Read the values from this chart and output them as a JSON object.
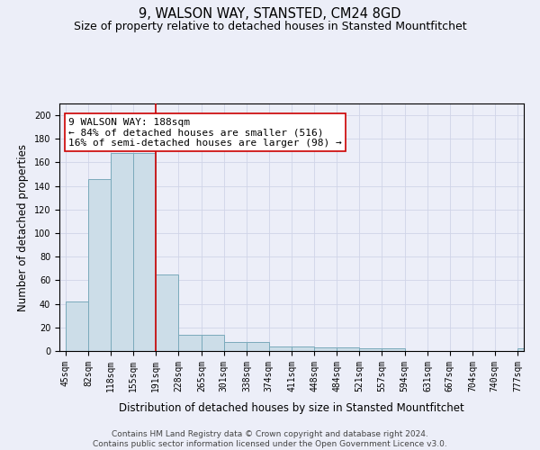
{
  "title": "9, WALSON WAY, STANSTED, CM24 8GD",
  "subtitle": "Size of property relative to detached houses in Stansted Mountfitchet",
  "xlabel": "Distribution of detached houses by size in Stansted Mountfitchet",
  "ylabel": "Number of detached properties",
  "bar_edges": [
    45,
    82,
    118,
    155,
    191,
    228,
    265,
    301,
    338,
    374,
    411,
    448,
    484,
    521,
    557,
    594,
    631,
    667,
    704,
    740,
    777
  ],
  "bar_heights": [
    42,
    146,
    168,
    168,
    65,
    14,
    14,
    8,
    8,
    4,
    4,
    3,
    3,
    2,
    2,
    0,
    0,
    0,
    0,
    0,
    2
  ],
  "tick_labels": [
    "45sqm",
    "82sqm",
    "118sqm",
    "155sqm",
    "191sqm",
    "228sqm",
    "265sqm",
    "301sqm",
    "338sqm",
    "374sqm",
    "411sqm",
    "448sqm",
    "484sqm",
    "521sqm",
    "557sqm",
    "594sqm",
    "631sqm",
    "667sqm",
    "704sqm",
    "740sqm",
    "777sqm"
  ],
  "bar_color": "#ccdde8",
  "bar_edge_color": "#7aaabb",
  "bar_linewidth": 0.7,
  "grid_color": "#d0d4e8",
  "background_color": "#eceef8",
  "property_line_x": 191,
  "property_line_color": "#cc0000",
  "annotation_text": "9 WALSON WAY: 188sqm\n← 84% of detached houses are smaller (516)\n16% of semi-detached houses are larger (98) →",
  "annotation_box_color": "#ffffff",
  "annotation_box_edge": "#cc0000",
  "ylim": [
    0,
    210
  ],
  "yticks": [
    0,
    20,
    40,
    60,
    80,
    100,
    120,
    140,
    160,
    180,
    200
  ],
  "footer_text": "Contains HM Land Registry data © Crown copyright and database right 2024.\nContains public sector information licensed under the Open Government Licence v3.0.",
  "title_fontsize": 10.5,
  "subtitle_fontsize": 9,
  "xlabel_fontsize": 8.5,
  "ylabel_fontsize": 8.5,
  "tick_fontsize": 7,
  "annotation_fontsize": 8,
  "footer_fontsize": 6.5
}
